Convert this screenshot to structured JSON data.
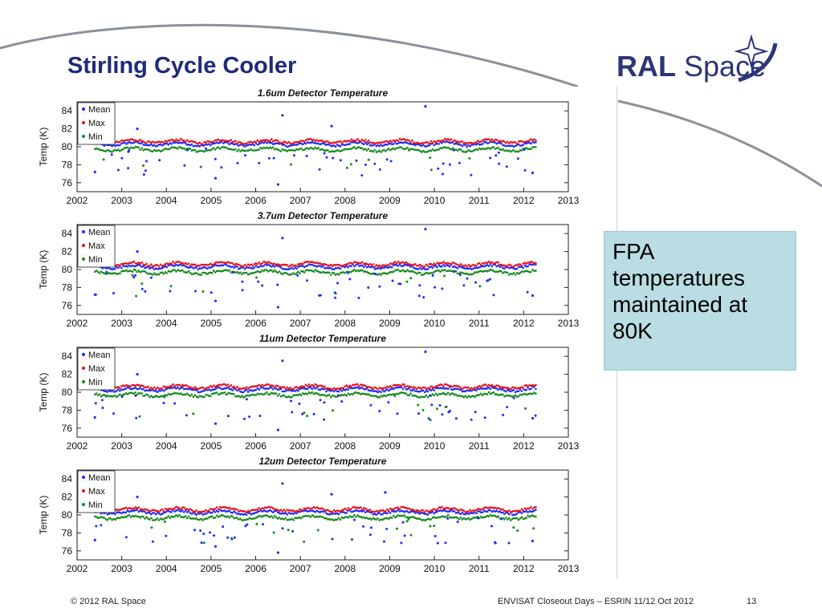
{
  "slide": {
    "title": "Stirling Cycle Cooler",
    "logo_bold": "RAL",
    "logo_light": "Space",
    "callout": "FPA temperatures maintained at 80K",
    "footer_left": "© 2012 RAL Space",
    "footer_center": "ENVISAT Closeout Days – ESRIN 11/12 Oct 2012",
    "page_number": "13"
  },
  "colors": {
    "title": "#1f2a7a",
    "mean": "#1f2bff",
    "max": "#e8141a",
    "min": "#168a1e",
    "callout_bg": "#b9dde2"
  },
  "chart_data": [
    {
      "type": "scatter",
      "title": "1.6um Detector Temperature",
      "ylabel": "Temp (K)",
      "xlabel": "",
      "xlim": [
        2002,
        2013
      ],
      "ylim": [
        75,
        85
      ],
      "xticks": [
        "2002",
        "2003",
        "2004",
        "2005",
        "2006",
        "2007",
        "2008",
        "2009",
        "2010",
        "2011",
        "2012",
        "2013"
      ],
      "yticks": [
        "76",
        "78",
        "80",
        "82",
        "84"
      ],
      "legend": {
        "placement": "top-left",
        "entries": [
          "Mean",
          "Max",
          "Min"
        ]
      },
      "series": [
        {
          "name": "Mean",
          "baseline": 80.3,
          "x_range": [
            2002.4,
            2012.3
          ]
        },
        {
          "name": "Max",
          "baseline": 80.6,
          "x_range": [
            2002.4,
            2012.3
          ]
        },
        {
          "name": "Min",
          "baseline": 79.7,
          "x_range": [
            2002.4,
            2012.3
          ]
        }
      ],
      "outliers": [
        {
          "series": "Mean",
          "x": 2006.6,
          "y": 83.5
        },
        {
          "series": "Mean",
          "x": 2007.7,
          "y": 82.3
        },
        {
          "series": "Mean",
          "x": 2003.35,
          "y": 82.0
        },
        {
          "series": "Mean",
          "x": 2009.8,
          "y": 84.5
        },
        {
          "series": "Mean",
          "x": 2005.1,
          "y": 76.5
        },
        {
          "series": "Mean",
          "x": 2006.5,
          "y": 75.8
        },
        {
          "series": "Mean",
          "x": 2002.4,
          "y": 77.2
        },
        {
          "series": "Mean",
          "x": 2012.2,
          "y": 77.1
        }
      ]
    },
    {
      "type": "scatter",
      "title": "3.7um Detector Temperature",
      "ylabel": "Temp (K)",
      "xlabel": "",
      "xlim": [
        2002,
        2013
      ],
      "ylim": [
        75,
        85
      ],
      "xticks": [
        "2002",
        "2003",
        "2004",
        "2005",
        "2006",
        "2007",
        "2008",
        "2009",
        "2010",
        "2011",
        "2012",
        "2013"
      ],
      "yticks": [
        "76",
        "78",
        "80",
        "82",
        "84"
      ],
      "legend": {
        "placement": "top-left",
        "entries": [
          "Mean",
          "Max",
          "Min"
        ]
      },
      "series": [
        {
          "name": "Mean",
          "baseline": 80.3,
          "x_range": [
            2002.4,
            2012.3
          ]
        },
        {
          "name": "Max",
          "baseline": 80.6,
          "x_range": [
            2002.4,
            2012.3
          ]
        },
        {
          "name": "Min",
          "baseline": 79.7,
          "x_range": [
            2002.4,
            2012.3
          ]
        }
      ],
      "outliers": [
        {
          "series": "Mean",
          "x": 2006.6,
          "y": 83.5
        },
        {
          "series": "Mean",
          "x": 2003.35,
          "y": 82.0
        },
        {
          "series": "Mean",
          "x": 2009.8,
          "y": 84.5
        },
        {
          "series": "Mean",
          "x": 2005.1,
          "y": 76.5
        },
        {
          "series": "Mean",
          "x": 2006.5,
          "y": 75.8
        },
        {
          "series": "Mean",
          "x": 2002.4,
          "y": 77.2
        },
        {
          "series": "Mean",
          "x": 2012.2,
          "y": 77.1
        }
      ]
    },
    {
      "type": "scatter",
      "title": "11um Detector Temperature",
      "ylabel": "Temp (K)",
      "xlabel": "",
      "xlim": [
        2002,
        2013
      ],
      "ylim": [
        75,
        85
      ],
      "xticks": [
        "2002",
        "2003",
        "2004",
        "2005",
        "2006",
        "2007",
        "2008",
        "2009",
        "2010",
        "2011",
        "2012",
        "2013"
      ],
      "yticks": [
        "76",
        "78",
        "80",
        "82",
        "84"
      ],
      "legend": {
        "placement": "top-left",
        "entries": [
          "Mean",
          "Max",
          "Min"
        ]
      },
      "series": [
        {
          "name": "Mean",
          "baseline": 80.3,
          "x_range": [
            2002.4,
            2012.3
          ]
        },
        {
          "name": "Max",
          "baseline": 80.6,
          "x_range": [
            2002.4,
            2012.3
          ]
        },
        {
          "name": "Min",
          "baseline": 79.7,
          "x_range": [
            2002.4,
            2012.3
          ]
        }
      ],
      "outliers": [
        {
          "series": "Mean",
          "x": 2006.6,
          "y": 83.5
        },
        {
          "series": "Mean",
          "x": 2003.35,
          "y": 82.0
        },
        {
          "series": "Mean",
          "x": 2009.8,
          "y": 84.5
        },
        {
          "series": "Mean",
          "x": 2005.1,
          "y": 76.5
        },
        {
          "series": "Mean",
          "x": 2006.5,
          "y": 75.8
        },
        {
          "series": "Mean",
          "x": 2002.4,
          "y": 77.2
        },
        {
          "series": "Mean",
          "x": 2012.2,
          "y": 77.1
        }
      ]
    },
    {
      "type": "scatter",
      "title": "12um Detector Temperature",
      "ylabel": "Temp (K)",
      "xlabel": "",
      "xlim": [
        2002,
        2013
      ],
      "ylim": [
        75,
        85
      ],
      "xticks": [
        "2002",
        "2003",
        "2004",
        "2005",
        "2006",
        "2007",
        "2008",
        "2009",
        "2010",
        "2011",
        "2012",
        "2013"
      ],
      "yticks": [
        "76",
        "78",
        "80",
        "82",
        "84"
      ],
      "legend": {
        "placement": "top-left",
        "entries": [
          "Mean",
          "Max",
          "Min"
        ]
      },
      "series": [
        {
          "name": "Mean",
          "baseline": 80.3,
          "x_range": [
            2002.4,
            2012.3
          ]
        },
        {
          "name": "Max",
          "baseline": 80.6,
          "x_range": [
            2002.4,
            2012.3
          ]
        },
        {
          "name": "Min",
          "baseline": 79.7,
          "x_range": [
            2002.4,
            2012.3
          ]
        }
      ],
      "outliers": [
        {
          "series": "Mean",
          "x": 2006.6,
          "y": 83.5
        },
        {
          "series": "Mean",
          "x": 2007.7,
          "y": 82.3
        },
        {
          "series": "Mean",
          "x": 2008.9,
          "y": 82.5
        },
        {
          "series": "Mean",
          "x": 2003.35,
          "y": 82.0
        },
        {
          "series": "Mean",
          "x": 2005.1,
          "y": 76.5
        },
        {
          "series": "Mean",
          "x": 2006.5,
          "y": 75.8
        },
        {
          "series": "Mean",
          "x": 2002.4,
          "y": 77.2
        },
        {
          "series": "Mean",
          "x": 2012.2,
          "y": 77.1
        }
      ]
    }
  ]
}
